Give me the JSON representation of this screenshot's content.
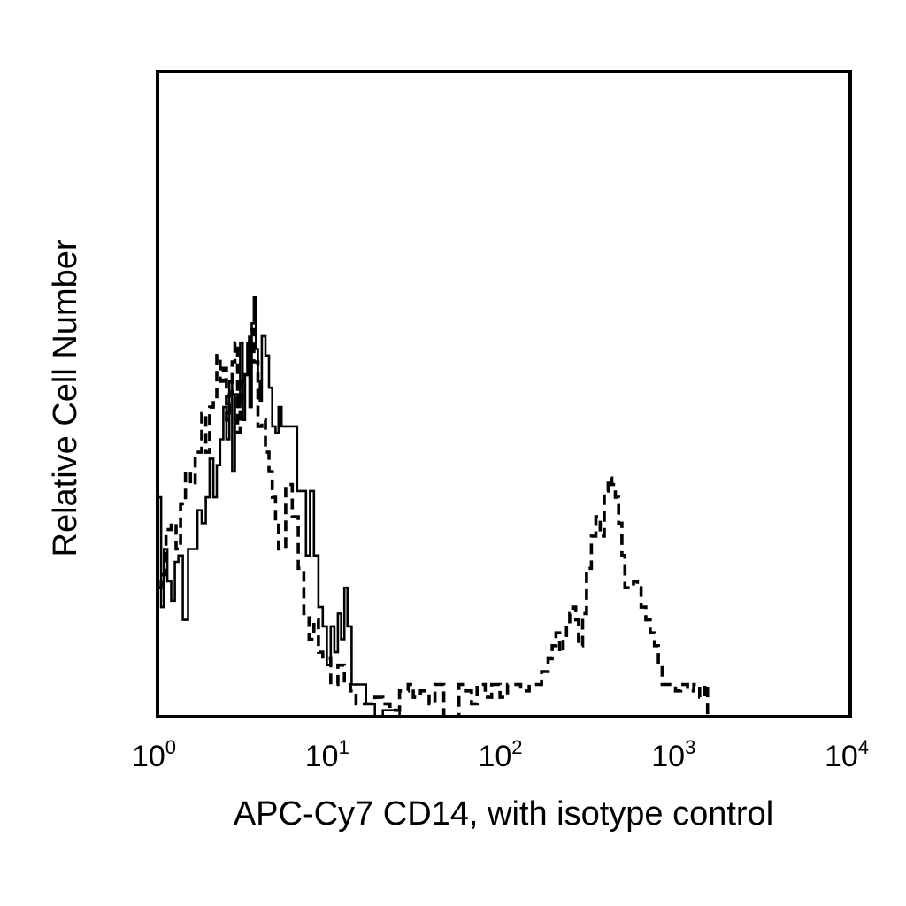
{
  "chart_data": {
    "type": "line",
    "subtype": "flow-cytometry-histogram",
    "x_scale": "log",
    "xlim": [
      1,
      10000
    ],
    "ylim": [
      0,
      100
    ],
    "grid": false,
    "legend": "none",
    "xlabel": "APC-Cy7 CD14, with isotype control",
    "ylabel": "Relative Cell Number",
    "x_ticks": [
      {
        "base": "10",
        "exp": "0",
        "value": 1
      },
      {
        "base": "10",
        "exp": "1",
        "value": 10
      },
      {
        "base": "10",
        "exp": "2",
        "value": 100
      },
      {
        "base": "10",
        "exp": "3",
        "value": 1000
      },
      {
        "base": "10",
        "exp": "4",
        "value": 10000
      }
    ],
    "series": [
      {
        "style": "solid",
        "color": "#000000",
        "points": [
          [
            1.0,
            34
          ],
          [
            1.05,
            17
          ],
          [
            1.09,
            26
          ],
          [
            1.14,
            21
          ],
          [
            1.2,
            18
          ],
          [
            1.26,
            24
          ],
          [
            1.32,
            25
          ],
          [
            1.4,
            15
          ],
          [
            1.5,
            26
          ],
          [
            1.6,
            26
          ],
          [
            1.7,
            32
          ],
          [
            1.8,
            30
          ],
          [
            1.9,
            34
          ],
          [
            2.0,
            40
          ],
          [
            2.1,
            34
          ],
          [
            2.2,
            39
          ],
          [
            2.3,
            43
          ],
          [
            2.4,
            48
          ],
          [
            2.5,
            43
          ],
          [
            2.6,
            52
          ],
          [
            2.7,
            38
          ],
          [
            2.8,
            50
          ],
          [
            2.9,
            48
          ],
          [
            3.0,
            58
          ],
          [
            3.1,
            46
          ],
          [
            3.2,
            53
          ],
          [
            3.3,
            58
          ],
          [
            3.4,
            48
          ],
          [
            3.5,
            61
          ],
          [
            3.6,
            65
          ],
          [
            3.7,
            57
          ],
          [
            3.8,
            52
          ],
          [
            3.9,
            49
          ],
          [
            4.0,
            59
          ],
          [
            4.2,
            56
          ],
          [
            4.4,
            51
          ],
          [
            4.6,
            45
          ],
          [
            4.8,
            44
          ],
          [
            5.0,
            48
          ],
          [
            5.2,
            45
          ],
          [
            5.5,
            45
          ],
          [
            5.8,
            45
          ],
          [
            6.1,
            45
          ],
          [
            6.4,
            35
          ],
          [
            6.8,
            35
          ],
          [
            7.2,
            25
          ],
          [
            7.6,
            35
          ],
          [
            8.0,
            25
          ],
          [
            8.5,
            17
          ],
          [
            9.0,
            14
          ],
          [
            9.5,
            8
          ],
          [
            10.0,
            14
          ],
          [
            10.5,
            10
          ],
          [
            11.0,
            16
          ],
          [
            11.5,
            12
          ],
          [
            12.0,
            20
          ],
          [
            12.5,
            14
          ],
          [
            13.2,
            5
          ],
          [
            14.0,
            5
          ],
          [
            15.0,
            5
          ],
          [
            16.0,
            2
          ],
          [
            18.0,
            0
          ],
          [
            20.0,
            1
          ],
          [
            25.0,
            0
          ],
          [
            40.0,
            0
          ],
          [
            60.0,
            0
          ],
          [
            100.0,
            0
          ],
          [
            200.0,
            0
          ],
          [
            400.0,
            0
          ],
          [
            700.0,
            0
          ],
          [
            10000.0,
            0
          ]
        ]
      },
      {
        "style": "dashed",
        "color": "#000000",
        "points": [
          [
            1.0,
            20
          ],
          [
            1.05,
            22
          ],
          [
            1.12,
            29
          ],
          [
            1.2,
            30
          ],
          [
            1.28,
            26
          ],
          [
            1.36,
            33
          ],
          [
            1.45,
            38
          ],
          [
            1.55,
            36
          ],
          [
            1.65,
            41
          ],
          [
            1.8,
            47
          ],
          [
            1.9,
            41
          ],
          [
            2.0,
            48
          ],
          [
            2.1,
            49
          ],
          [
            2.2,
            56
          ],
          [
            2.3,
            52
          ],
          [
            2.4,
            54
          ],
          [
            2.5,
            46
          ],
          [
            2.6,
            50
          ],
          [
            2.7,
            55
          ],
          [
            2.8,
            58
          ],
          [
            2.9,
            44
          ],
          [
            3.0,
            52
          ],
          [
            3.2,
            53
          ],
          [
            3.4,
            60
          ],
          [
            3.6,
            55
          ],
          [
            3.8,
            45
          ],
          [
            4.0,
            46
          ],
          [
            4.2,
            41
          ],
          [
            4.4,
            38
          ],
          [
            4.6,
            34
          ],
          [
            4.8,
            30
          ],
          [
            5.0,
            26
          ],
          [
            5.5,
            36
          ],
          [
            6.0,
            31
          ],
          [
            6.5,
            23
          ],
          [
            7.0,
            16
          ],
          [
            7.5,
            12
          ],
          [
            8.0,
            15
          ],
          [
            8.5,
            10
          ],
          [
            9.0,
            9
          ],
          [
            10.0,
            5
          ],
          [
            11.0,
            8
          ],
          [
            12.0,
            5
          ],
          [
            13.0,
            4
          ],
          [
            14.0,
            2
          ],
          [
            16.0,
            2
          ],
          [
            18.0,
            3
          ],
          [
            20.0,
            2
          ],
          [
            22.0,
            1
          ],
          [
            25.0,
            4
          ],
          [
            28.0,
            5
          ],
          [
            30.0,
            3
          ],
          [
            33.0,
            4
          ],
          [
            37.0,
            2
          ],
          [
            40.0,
            5
          ],
          [
            45.0,
            0
          ],
          [
            52.0,
            0
          ],
          [
            55.0,
            5
          ],
          [
            60.0,
            4
          ],
          [
            65.0,
            2
          ],
          [
            70.0,
            5
          ],
          [
            78.0,
            3
          ],
          [
            85.0,
            5
          ],
          [
            95.0,
            3
          ],
          [
            105.0,
            5
          ],
          [
            115.0,
            5
          ],
          [
            125.0,
            4
          ],
          [
            140.0,
            5
          ],
          [
            155.0,
            5
          ],
          [
            165.0,
            7
          ],
          [
            180.0,
            9
          ],
          [
            190.0,
            11
          ],
          [
            200.0,
            13
          ],
          [
            210.0,
            10
          ],
          [
            220.0,
            12
          ],
          [
            230.0,
            14
          ],
          [
            240.0,
            16
          ],
          [
            250.0,
            17
          ],
          [
            260.0,
            15
          ],
          [
            270.0,
            11
          ],
          [
            285.0,
            16
          ],
          [
            300.0,
            23
          ],
          [
            320.0,
            28
          ],
          [
            340.0,
            31
          ],
          [
            360.0,
            28
          ],
          [
            380.0,
            35
          ],
          [
            400.0,
            37
          ],
          [
            420.0,
            36
          ],
          [
            440.0,
            34
          ],
          [
            460.0,
            30
          ],
          [
            480.0,
            25
          ],
          [
            500.0,
            20
          ],
          [
            530.0,
            20
          ],
          [
            560.0,
            21
          ],
          [
            590.0,
            20
          ],
          [
            620.0,
            17
          ],
          [
            660.0,
            15
          ],
          [
            700.0,
            13
          ],
          [
            740.0,
            11
          ],
          [
            780.0,
            8
          ],
          [
            820.0,
            5
          ],
          [
            870.0,
            5
          ],
          [
            920.0,
            5
          ],
          [
            980.0,
            4
          ],
          [
            1050.0,
            5
          ],
          [
            1150.0,
            4
          ],
          [
            1250.0,
            5
          ],
          [
            1350.0,
            3
          ],
          [
            1450.0,
            5
          ],
          [
            1500.0,
            0
          ],
          [
            10000.0,
            0
          ]
        ]
      }
    ]
  }
}
